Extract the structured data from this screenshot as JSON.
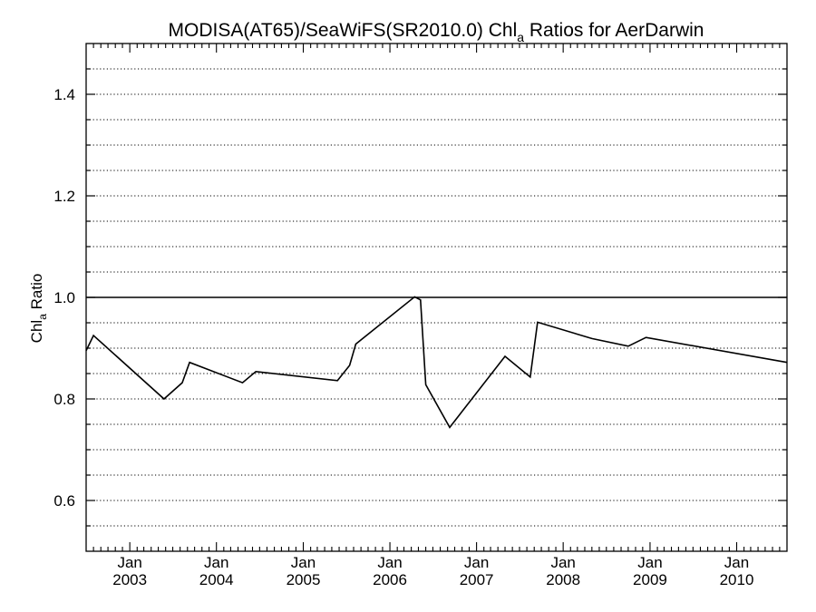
{
  "chart_data": {
    "type": "line",
    "title": {
      "prefix": "MODISA(AT65)/SeaWiFS(SR2010.0)  Chl",
      "subscript": "a",
      "suffix": " Ratios for AerDarwin"
    },
    "ylabel": {
      "base": "Chl",
      "subscript": "a",
      "suffix": " Ratio"
    },
    "xlim": [
      "2002-07-01",
      "2010-08-01"
    ],
    "ylim": [
      0.5,
      1.5
    ],
    "y_ticks": [
      0.6,
      0.8,
      1.0,
      1.2,
      1.4
    ],
    "y_tick_labels": [
      "0.6",
      "0.8",
      "1.0",
      "1.2",
      "1.4"
    ],
    "x_ticks": [
      {
        "date": "2003-01-01",
        "month": "Jan",
        "year": "2003"
      },
      {
        "date": "2004-01-01",
        "month": "Jan",
        "year": "2004"
      },
      {
        "date": "2005-01-01",
        "month": "Jan",
        "year": "2005"
      },
      {
        "date": "2006-01-01",
        "month": "Jan",
        "year": "2006"
      },
      {
        "date": "2007-01-01",
        "month": "Jan",
        "year": "2007"
      },
      {
        "date": "2008-01-01",
        "month": "Jan",
        "year": "2008"
      },
      {
        "date": "2009-01-01",
        "month": "Jan",
        "year": "2009"
      },
      {
        "date": "2010-01-01",
        "month": "Jan",
        "year": "2010"
      }
    ],
    "grid": "dotted horizontal",
    "reference_line": 1.0,
    "series": [
      {
        "points": [
          {
            "x": "2002-07-01",
            "y": 0.895
          },
          {
            "x": "2002-08-01",
            "y": 0.925
          },
          {
            "x": "2003-05-25",
            "y": 0.8
          },
          {
            "x": "2003-08-10",
            "y": 0.832
          },
          {
            "x": "2003-09-10",
            "y": 0.872
          },
          {
            "x": "2004-04-20",
            "y": 0.832
          },
          {
            "x": "2004-06-15",
            "y": 0.854
          },
          {
            "x": "2005-05-25",
            "y": 0.836
          },
          {
            "x": "2005-07-15",
            "y": 0.866
          },
          {
            "x": "2005-08-10",
            "y": 0.908
          },
          {
            "x": "2006-04-15",
            "y": 1.001
          },
          {
            "x": "2006-05-10",
            "y": 0.995
          },
          {
            "x": "2006-06-01",
            "y": 0.828
          },
          {
            "x": "2006-09-10",
            "y": 0.744
          },
          {
            "x": "2007-05-01",
            "y": 0.884
          },
          {
            "x": "2007-08-15",
            "y": 0.843
          },
          {
            "x": "2007-09-15",
            "y": 0.951
          },
          {
            "x": "2008-05-01",
            "y": 0.919
          },
          {
            "x": "2008-10-01",
            "y": 0.904
          },
          {
            "x": "2008-12-15",
            "y": 0.921
          },
          {
            "x": "2010-08-01",
            "y": 0.872
          }
        ]
      }
    ]
  }
}
